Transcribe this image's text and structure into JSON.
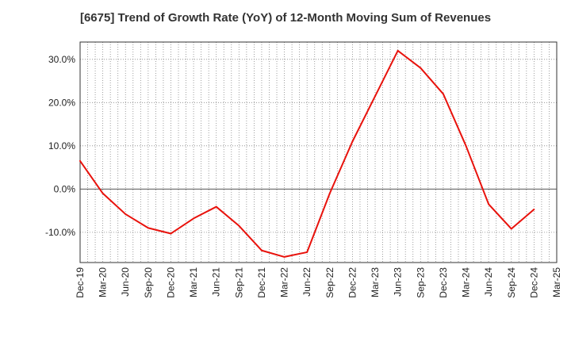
{
  "chart_data": {
    "type": "line",
    "title": "[6675]  Trend of Growth Rate (YoY) of 12-Month Moving Sum of Revenues",
    "xlabel": "",
    "ylabel": "",
    "x": [
      "Dec-19",
      "Mar-20",
      "Jun-20",
      "Sep-20",
      "Dec-20",
      "Mar-21",
      "Jun-21",
      "Sep-21",
      "Dec-21",
      "Mar-22",
      "Jun-22",
      "Sep-22",
      "Dec-22",
      "Mar-23",
      "Jun-23",
      "Sep-23",
      "Dec-23",
      "Mar-24",
      "Jun-24",
      "Sep-24",
      "Dec-24",
      "Mar-25"
    ],
    "series": [
      {
        "color": "#e8120c",
        "values": [
          6.5,
          -1.0,
          -5.8,
          -9.0,
          -10.3,
          -6.8,
          -4.1,
          -8.5,
          -14.2,
          -15.7,
          -14.6,
          -1.0,
          11.0,
          21.5,
          32.0,
          28.0,
          22.0,
          10.0,
          -3.5,
          -9.2,
          -4.7,
          null
        ]
      }
    ],
    "ylim": [
      -17,
      34
    ],
    "yticks": [
      30,
      20,
      10,
      0,
      -10
    ],
    "ytick_labels": [
      "30.0%",
      "20.0%",
      "10.0%",
      "0.0%",
      "-10.0%"
    ],
    "grid": true
  }
}
